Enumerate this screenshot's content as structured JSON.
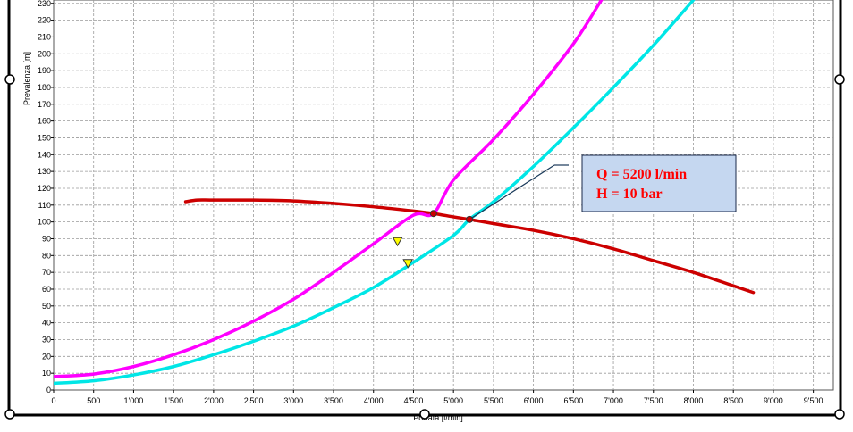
{
  "chart_data": {
    "type": "line",
    "xlabel": "Portata [l/min]",
    "ylabel": "Prevalenza [m]",
    "xlim": [
      0,
      9750
    ],
    "ylim": [
      0,
      232
    ],
    "x_ticks": [
      0,
      500,
      1000,
      1500,
      2000,
      2500,
      3000,
      3500,
      4000,
      4500,
      5000,
      5500,
      6000,
      6500,
      7000,
      7500,
      8000,
      8500,
      9000,
      9500
    ],
    "x_tick_labels": [
      "0",
      "500",
      "1'000",
      "1'500",
      "2'000",
      "2'500",
      "3'000",
      "3'500",
      "4'000",
      "4'500",
      "5'000",
      "5'500",
      "6'000",
      "6'500",
      "7'000",
      "7'500",
      "8'000",
      "8'500",
      "9'000",
      "9'500"
    ],
    "y_ticks": [
      0,
      10,
      20,
      30,
      40,
      50,
      60,
      70,
      80,
      90,
      100,
      110,
      120,
      130,
      140,
      150,
      160,
      170,
      180,
      190,
      200,
      210,
      220,
      230
    ],
    "y_tick_labels": [
      "0",
      "10",
      "20",
      "30",
      "40",
      "50",
      "60",
      "70",
      "80",
      "90",
      "100",
      "110",
      "120",
      "130",
      "140",
      "150",
      "160",
      "170",
      "180",
      "190",
      "200",
      "210",
      "220",
      "230"
    ],
    "grid": true,
    "series": [
      {
        "color": "#cc0000",
        "points": [
          [
            1650,
            112
          ],
          [
            1800,
            113
          ],
          [
            2000,
            113
          ],
          [
            2500,
            113
          ],
          [
            3000,
            112.5
          ],
          [
            3500,
            111
          ],
          [
            4000,
            109
          ],
          [
            4500,
            106.5
          ],
          [
            4750,
            105
          ],
          [
            5000,
            103
          ],
          [
            5200,
            101.5
          ],
          [
            5500,
            99
          ],
          [
            6000,
            95
          ],
          [
            6500,
            90
          ],
          [
            7000,
            84
          ],
          [
            7500,
            77
          ],
          [
            8000,
            70
          ],
          [
            8500,
            62
          ],
          [
            8750,
            58
          ]
        ]
      },
      {
        "color": "#ff00ff",
        "points": [
          [
            0,
            8
          ],
          [
            500,
            9.5
          ],
          [
            1000,
            14
          ],
          [
            1500,
            21
          ],
          [
            2000,
            30
          ],
          [
            2500,
            41
          ],
          [
            3000,
            54
          ],
          [
            3500,
            70
          ],
          [
            4000,
            87
          ],
          [
            4500,
            104
          ],
          [
            4750,
            105
          ],
          [
            5000,
            125
          ],
          [
            5500,
            149
          ],
          [
            6000,
            176
          ],
          [
            6500,
            206
          ],
          [
            6850,
            232
          ]
        ]
      },
      {
        "color": "#00e6e6",
        "points": [
          [
            0,
            4
          ],
          [
            500,
            5.5
          ],
          [
            1000,
            9
          ],
          [
            1500,
            14
          ],
          [
            2000,
            21
          ],
          [
            2500,
            29
          ],
          [
            3000,
            38
          ],
          [
            3500,
            49
          ],
          [
            4000,
            61
          ],
          [
            4500,
            76
          ],
          [
            5000,
            92
          ],
          [
            5200,
            101.5
          ],
          [
            5500,
            112
          ],
          [
            6000,
            133
          ],
          [
            6500,
            156
          ],
          [
            7000,
            180
          ],
          [
            7500,
            205
          ],
          [
            8000,
            232
          ]
        ]
      }
    ],
    "markers": [
      {
        "shape": "triangle",
        "color": "#ffff00",
        "x": 4300,
        "y": 88
      },
      {
        "shape": "triangle",
        "color": "#ffff00",
        "x": 4430,
        "y": 75
      },
      {
        "shape": "circle",
        "color": "#cc0000",
        "x": 4750,
        "y": 105
      },
      {
        "shape": "circle",
        "color": "#cc0000",
        "x": 5200,
        "y": 101.5
      }
    ],
    "annotation": {
      "lines": [
        "Q = 5200 l/min",
        "H = 10 bar"
      ],
      "anchor_x": 5200,
      "anchor_y": 101.5,
      "fill": "#c5d7f0",
      "text_color": "#ff0000"
    }
  },
  "colors": {
    "grid": "#9a9a9a",
    "frame": "#000000",
    "handle_fill": "#ffffff"
  }
}
